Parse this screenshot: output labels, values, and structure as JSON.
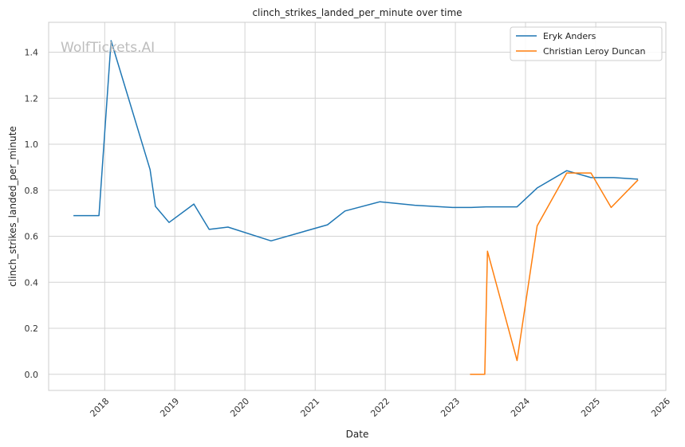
{
  "chart_data": {
    "type": "line",
    "title": "clinch_strikes_landed_per_minute over time",
    "xlabel": "Date",
    "ylabel": "clinch_strikes_landed_per_minute",
    "watermark": "WolfTickets.AI",
    "x_ticks": [
      "2018",
      "2019",
      "2020",
      "2021",
      "2022",
      "2023",
      "2024",
      "2025",
      "2026"
    ],
    "y_ticks": [
      "0.0",
      "0.2",
      "0.4",
      "0.6",
      "0.8",
      "1.0",
      "1.2",
      "1.4"
    ],
    "xlim": [
      "2017-03-15",
      "2026-01-01"
    ],
    "ylim": [
      -0.07,
      1.53
    ],
    "grid": true,
    "legend_position": "top-right",
    "series": [
      {
        "name": "Eryk Anders",
        "color": "#1f77b4",
        "x": [
          "2017-07-22",
          "2017-12-02",
          "2018-02-03",
          "2018-08-25",
          "2018-09-22",
          "2018-12-02",
          "2019-04-10",
          "2019-06-29",
          "2019-10-05",
          "2020-05-16",
          "2021-03-06",
          "2021-06-05",
          "2021-12-04",
          "2022-06-04",
          "2022-12-17",
          "2023-03-25",
          "2023-06-10",
          "2023-11-18",
          "2024-03-02",
          "2024-08-03",
          "2024-12-07",
          "2025-04-05",
          "2025-08-09"
        ],
        "y": [
          0.69,
          0.69,
          1.45,
          0.89,
          0.73,
          0.66,
          0.74,
          0.63,
          0.64,
          0.58,
          0.65,
          0.71,
          0.75,
          0.735,
          0.725,
          0.725,
          0.728,
          0.728,
          0.81,
          0.885,
          0.855,
          0.855,
          0.848
        ]
      },
      {
        "name": "Christian Leroy Duncan",
        "color": "#ff7f0e",
        "x": [
          "2023-03-18",
          "2023-06-03",
          "2023-06-17",
          "2023-11-18",
          "2024-03-02",
          "2024-08-03",
          "2024-12-07",
          "2025-03-22",
          "2025-08-09"
        ],
        "y": [
          0.0,
          0.0,
          0.535,
          0.06,
          0.645,
          0.875,
          0.875,
          0.725,
          0.845
        ]
      }
    ]
  }
}
